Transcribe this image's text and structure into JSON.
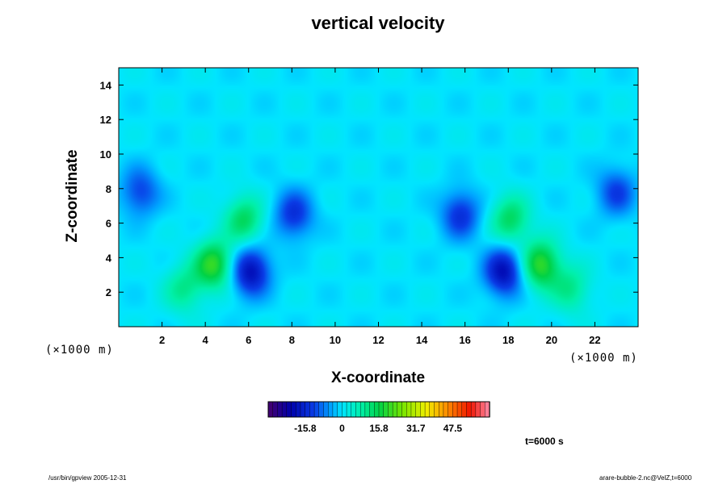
{
  "chart_data": {
    "type": "heatmap",
    "title": "vertical velocity",
    "xlabel": "X-coordinate",
    "ylabel": "Z-coordinate",
    "x_unit_label": "(×1000 m)",
    "y_unit_label": "(×1000 m)",
    "xlim": [
      0,
      24
    ],
    "ylim": [
      0,
      15
    ],
    "x_ticks": [
      2,
      4,
      6,
      8,
      10,
      12,
      14,
      16,
      18,
      20,
      22
    ],
    "y_ticks": [
      2,
      4,
      6,
      8,
      10,
      12,
      14
    ],
    "colorbar": {
      "tick_labels": [
        "-15.8",
        "0",
        "15.8",
        "31.7",
        "47.5"
      ],
      "tick_values": [
        -15.8,
        0,
        15.8,
        31.7,
        47.5
      ],
      "range": [
        -31.7,
        63.3
      ]
    },
    "background_value": 0,
    "features": [
      {
        "x": 4.4,
        "z": 3.6,
        "value": 20,
        "name": "left updraft core"
      },
      {
        "x": 5.8,
        "z": 6.2,
        "value": 14,
        "name": "left upper updraft"
      },
      {
        "x": 3.0,
        "z": 2.2,
        "value": 10,
        "name": "left low updraft"
      },
      {
        "x": 6.1,
        "z": 3.2,
        "value": -20,
        "name": "left downdraft core"
      },
      {
        "x": 8.1,
        "z": 6.5,
        "value": -14,
        "name": "left mid downdraft"
      },
      {
        "x": 1.0,
        "z": 7.8,
        "value": -12,
        "name": "left edge downdraft"
      },
      {
        "x": 19.5,
        "z": 3.6,
        "value": 20,
        "name": "right updraft core"
      },
      {
        "x": 18.1,
        "z": 6.2,
        "value": 14,
        "name": "right upper updraft"
      },
      {
        "x": 20.9,
        "z": 2.2,
        "value": 10,
        "name": "right low updraft"
      },
      {
        "x": 17.8,
        "z": 3.2,
        "value": -20,
        "name": "right downdraft core"
      },
      {
        "x": 15.8,
        "z": 6.5,
        "value": -14,
        "name": "right mid downdraft"
      },
      {
        "x": 23.0,
        "z": 7.8,
        "value": -12,
        "name": "right edge downdraft"
      }
    ]
  },
  "annotations": {
    "time": "t=6000 s",
    "footer_left": "/usr/bin/gpview 2005-12-31",
    "footer_right": "arare-bubble-2.nc@VelZ,t=6000"
  },
  "colors": {
    "background_field": "#00e5ff",
    "text": "#000000"
  }
}
